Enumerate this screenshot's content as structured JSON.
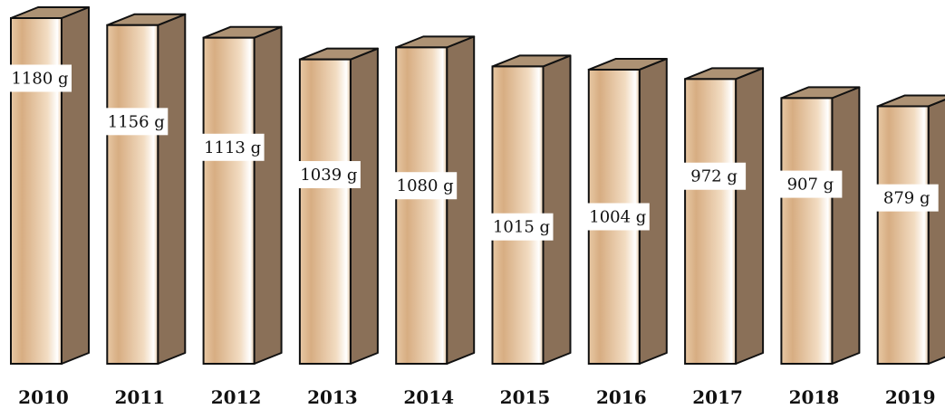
{
  "chart_data": {
    "type": "bar",
    "title": "",
    "xlabel": "",
    "ylabel": "",
    "unit": "g",
    "categories": [
      "2010",
      "2011",
      "2012",
      "2013",
      "2014",
      "2015",
      "2016",
      "2017",
      "2018",
      "2019"
    ],
    "values": [
      1180,
      1156,
      1113,
      1039,
      1080,
      1015,
      1004,
      972,
      907,
      879
    ],
    "labels": [
      "1180 g",
      "1156 g",
      "1113 g",
      "1039 g",
      "1080 g",
      "1015 g",
      "1004 g",
      "972 g",
      "907 g",
      "879 g"
    ],
    "colors": {
      "front_light": "#f3dcc0",
      "front_mid": "#d9b185",
      "side": "#8a7058",
      "top": "#ad9274",
      "outline": "#111111",
      "label_bg": "#ffffff"
    }
  }
}
